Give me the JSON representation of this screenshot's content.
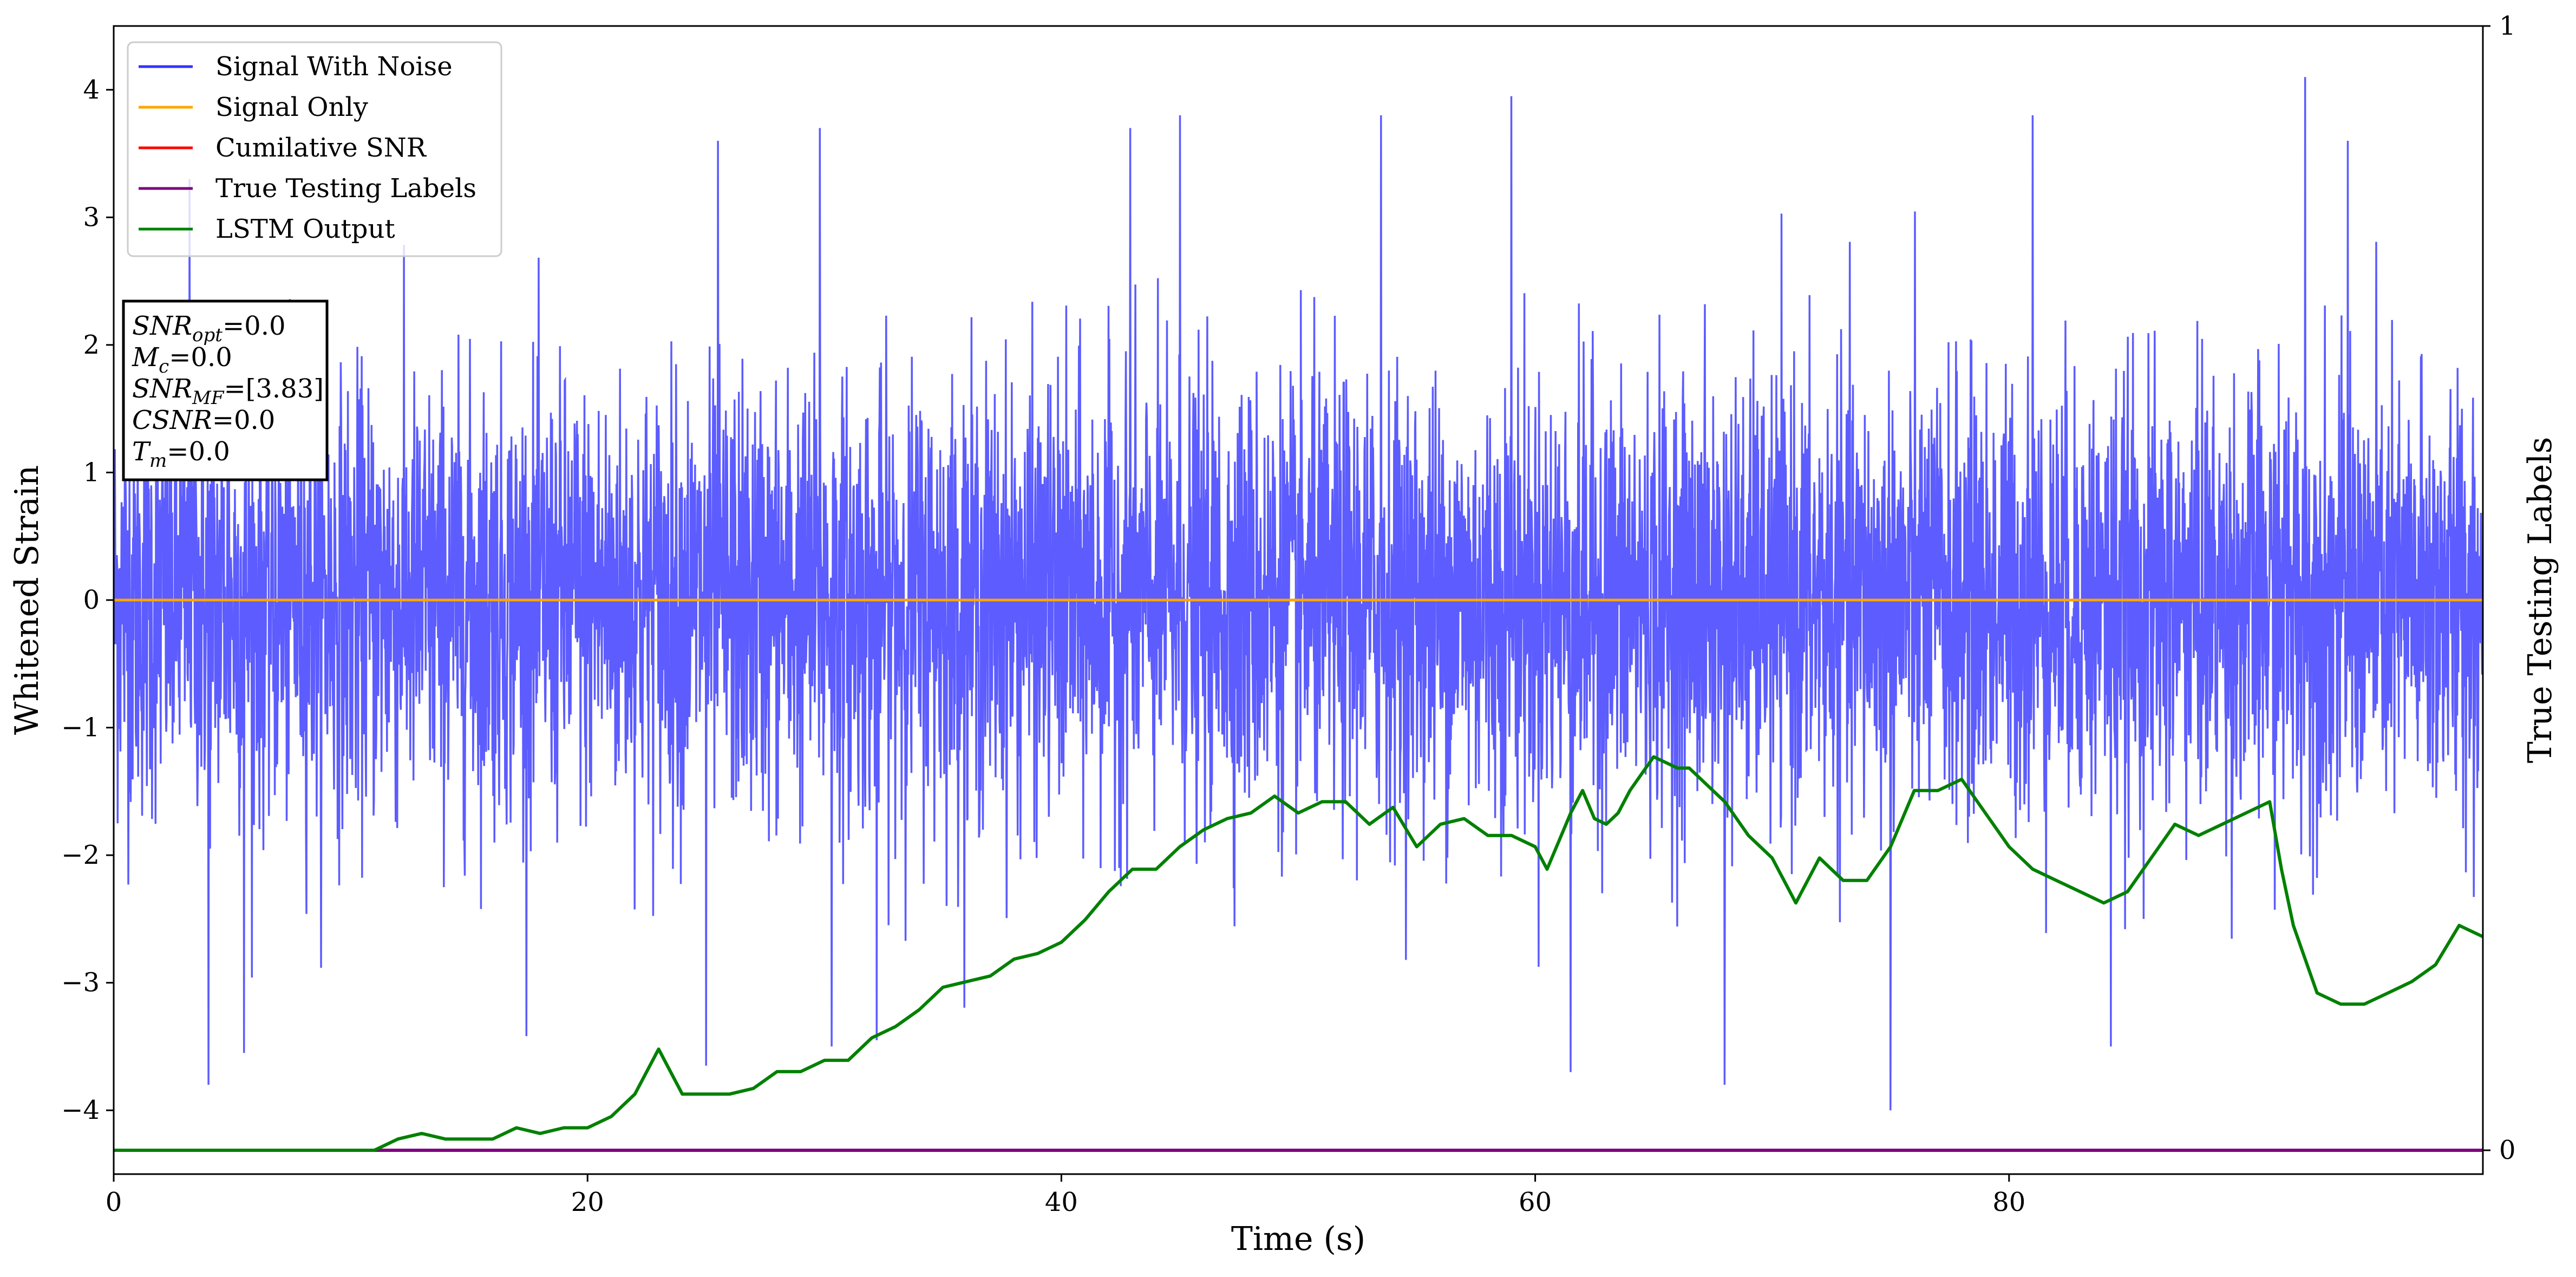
{
  "chart_data": {
    "type": "line",
    "xlabel": "Time (s)",
    "ylabel": "Whitened Strain",
    "ylabel_right": "True Testing Labels",
    "xlim": [
      0,
      100
    ],
    "ylim": [
      -4.5,
      4.5
    ],
    "ylim_right": [
      0,
      1
    ],
    "xticks": [
      0,
      20,
      40,
      60,
      80
    ],
    "yticks": [
      -4,
      -3,
      -2,
      -1,
      0,
      1,
      2,
      3,
      4
    ],
    "yticks_right": [
      0,
      1
    ],
    "legend_position": "top-left",
    "grid": false,
    "series": [
      {
        "name": "Signal With Noise",
        "color": "#3333ff",
        "axis": "left",
        "noise_std": 0.85,
        "peaks": [
          [
            4.0,
            -3.8
          ],
          [
            3.2,
            3.3
          ],
          [
            5.5,
            -3.55
          ],
          [
            25.0,
            -3.65
          ],
          [
            25.5,
            3.6
          ],
          [
            29.8,
            3.7
          ],
          [
            30.3,
            -3.5
          ],
          [
            32.2,
            -3.45
          ],
          [
            42.9,
            3.7
          ],
          [
            45.0,
            3.8
          ],
          [
            53.5,
            3.8
          ],
          [
            59.0,
            3.95
          ],
          [
            61.5,
            -3.7
          ],
          [
            68.0,
            -3.8
          ],
          [
            75.0,
            -4.0
          ],
          [
            81.0,
            3.8
          ],
          [
            84.3,
            -3.5
          ],
          [
            92.5,
            4.1
          ],
          [
            94.3,
            3.6
          ]
        ]
      },
      {
        "name": "Signal Only",
        "color": "#ffa500",
        "axis": "left",
        "x": [
          0,
          100
        ],
        "y": [
          0,
          0
        ]
      },
      {
        "name": "Cumilative SNR",
        "color": "#ff0000",
        "axis": "right",
        "x": [],
        "y": []
      },
      {
        "name": "True Testing Labels",
        "color": "#800080",
        "axis": "right",
        "x": [
          0,
          100
        ],
        "y": [
          0,
          0
        ]
      },
      {
        "name": "LSTM Output",
        "color": "#008000",
        "axis": "right",
        "x": [
          0,
          11,
          12,
          13,
          14,
          15,
          16,
          17,
          18,
          19,
          20,
          21,
          22,
          23,
          24,
          25,
          26,
          27,
          28,
          29,
          30,
          31,
          32,
          33,
          34,
          35,
          36,
          37,
          38,
          39,
          40,
          41,
          42,
          43,
          44,
          45,
          46,
          47,
          48,
          49,
          50,
          51,
          52,
          53,
          54,
          55,
          56,
          57,
          58,
          59,
          60,
          60.5,
          61,
          61.5,
          62,
          62.5,
          63,
          63.5,
          64,
          64.5,
          65,
          66,
          66.5,
          67,
          68,
          69,
          70,
          71,
          72,
          73,
          74,
          75,
          76,
          77,
          78,
          79,
          80,
          81,
          82,
          83,
          84,
          85,
          86,
          87,
          88,
          89,
          90,
          91,
          91.5,
          92,
          92.5,
          93,
          94,
          95,
          96,
          97,
          98,
          99,
          100
        ],
        "y": [
          0,
          0,
          0.01,
          0.015,
          0.01,
          0.01,
          0.01,
          0.02,
          0.015,
          0.02,
          0.02,
          0.03,
          0.05,
          0.09,
          0.05,
          0.05,
          0.05,
          0.055,
          0.07,
          0.07,
          0.08,
          0.08,
          0.1,
          0.11,
          0.125,
          0.145,
          0.15,
          0.155,
          0.17,
          0.175,
          0.185,
          0.205,
          0.23,
          0.25,
          0.25,
          0.27,
          0.285,
          0.295,
          0.3,
          0.315,
          0.3,
          0.31,
          0.31,
          0.29,
          0.305,
          0.27,
          0.29,
          0.295,
          0.28,
          0.28,
          0.27,
          0.25,
          0.275,
          0.3,
          0.32,
          0.295,
          0.29,
          0.3,
          0.32,
          0.335,
          0.35,
          0.34,
          0.34,
          0.33,
          0.31,
          0.28,
          0.26,
          0.22,
          0.26,
          0.24,
          0.24,
          0.27,
          0.32,
          0.32,
          0.33,
          0.3,
          0.27,
          0.25,
          0.24,
          0.23,
          0.22,
          0.23,
          0.26,
          0.29,
          0.28,
          0.29,
          0.3,
          0.31,
          0.25,
          0.2,
          0.17,
          0.14,
          0.13,
          0.13,
          0.14,
          0.15,
          0.165,
          0.2,
          0.19
        ]
      }
    ],
    "annotation": [
      {
        "name": "SNR",
        "sub": "opt",
        "value": "=0.0"
      },
      {
        "name": "M",
        "sub": "c",
        "value": "=0.0"
      },
      {
        "name": "SNR",
        "sub": "MF",
        "value": "=[3.83]"
      },
      {
        "name": "CSNR",
        "sub": "",
        "value": "=0.0"
      },
      {
        "name": "T",
        "sub": "m",
        "value": "=0.0"
      }
    ]
  }
}
